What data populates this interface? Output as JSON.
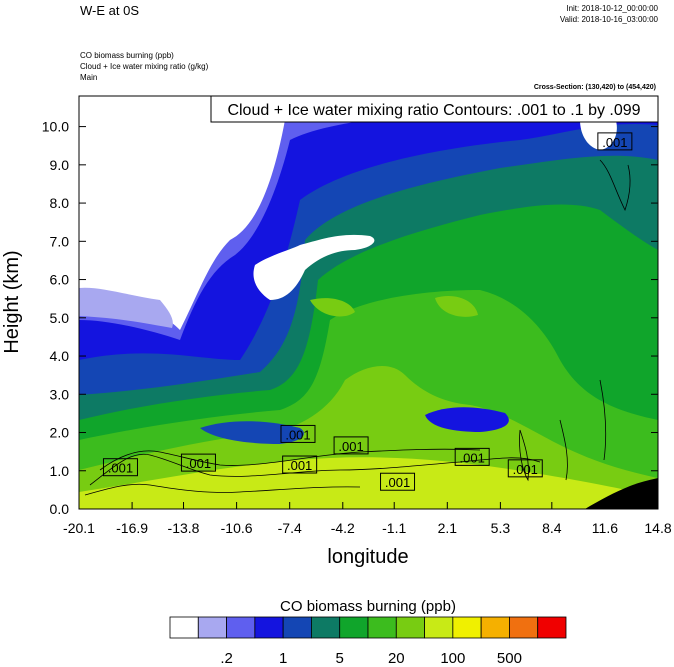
{
  "header": {
    "title": "W-E at 0S",
    "init": "Init: 2018-10-12_00:00:00",
    "valid": "Valid: 2018-10-16_03:00:00",
    "field1": "CO biomass burning   (ppb)",
    "field2": "Cloud + Ice water mixing ratio   (g/kg)",
    "field3": "Main",
    "cross_section": "Cross-Section: (130,420) to (454,420)"
  },
  "contour_info": "Cloud + Ice water mixing ratio Contours: .001 to .1 by .099",
  "colorbar": {
    "title": "CO biomass burning  (ppb)",
    "colors": [
      "#ffffff",
      "#a8a8f0",
      "#5f5fef",
      "#1414df",
      "#1446b4",
      "#0d7a64",
      "#10a52b",
      "#3cbc1e",
      "#78cc12",
      "#c8ea16",
      "#f0f000",
      "#f5b000",
      "#f07010",
      "#f00000"
    ],
    "labels": [
      ".2",
      "1",
      "5",
      "20",
      "100",
      "500"
    ]
  },
  "chart_data": {
    "type": "heatmap",
    "title": "",
    "xlabel": "longitude",
    "ylabel": "Height (km)",
    "x_ticks": [
      "-20.1",
      "-16.9",
      "-13.8",
      "-10.6",
      "-7.4",
      "-4.2",
      "-1.1",
      "2.1",
      "5.3",
      "8.4",
      "11.6",
      "14.8"
    ],
    "y_ticks": [
      "0.0",
      "1.0",
      "2.0",
      "3.0",
      "4.0",
      "5.0",
      "6.0",
      "7.0",
      "8.0",
      "9.0",
      "10.0"
    ],
    "xlim": [
      -20.1,
      14.8
    ],
    "ylim": [
      0,
      10.8
    ],
    "contour_labels": [
      {
        "text": ".001",
        "x": -17.6,
        "y": 1.08
      },
      {
        "text": ".001",
        "x": -12.9,
        "y": 1.2
      },
      {
        "text": ".001",
        "x": -6.9,
        "y": 1.95
      },
      {
        "text": ".001",
        "x": -6.8,
        "y": 1.15
      },
      {
        "text": ".001",
        "x": -3.7,
        "y": 1.65
      },
      {
        "text": ".001",
        "x": -0.9,
        "y": 0.7
      },
      {
        "text": ".001",
        "x": 3.6,
        "y": 1.35
      },
      {
        "text": ".001",
        "x": 6.8,
        "y": 1.05
      },
      {
        "text": ".001",
        "x": 12.2,
        "y": 9.6
      }
    ]
  }
}
